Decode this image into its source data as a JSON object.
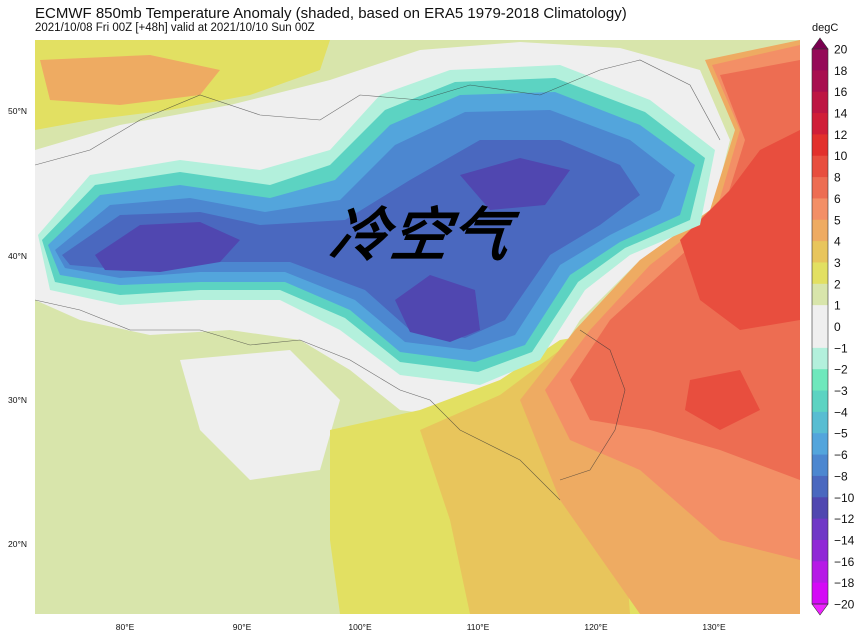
{
  "header": {
    "title": "ECMWF 850mb Temperature Anomaly (shaded, based on ERA5 1979-2018 Climatology)",
    "subtitle": "2021/10/08 Fri 00Z [+48h] valid at 2021/10/10 Sun 00Z"
  },
  "annotation": "冷空气",
  "axes": {
    "lat_labels": [
      "50°N",
      "40°N",
      "30°N",
      "20°N"
    ],
    "lon_labels": [
      "80°E",
      "90°E",
      "100°E",
      "110°E",
      "120°E",
      "130°E"
    ]
  },
  "colorbar": {
    "unit": "degC",
    "levels": [
      "20",
      "18",
      "16",
      "14",
      "12",
      "10",
      "8",
      "6",
      "5",
      "4",
      "3",
      "2",
      "1",
      "0",
      "−1",
      "−2",
      "−3",
      "−4",
      "−5",
      "−6",
      "−8",
      "−10",
      "−12",
      "−14",
      "−16",
      "−18",
      "−20"
    ],
    "colors": [
      "#950a58",
      "#a80f4f",
      "#bd1643",
      "#d01e38",
      "#e2302c",
      "#e84e3e",
      "#ed6d52",
      "#f38f66",
      "#eeab62",
      "#e8c55c",
      "#e2e062",
      "#d8e5ab",
      "#efefef",
      "#efefef",
      "#b3f0dc",
      "#6fe8bc",
      "#5cd3c2",
      "#58bdd2",
      "#53a5dc",
      "#4c87d0",
      "#4a68bf",
      "#5047b0",
      "#7038c6",
      "#9028d6",
      "#b61ae6",
      "#d40af6"
    ],
    "over_color": "#7a0050",
    "under_color": "#ee22ff"
  },
  "field_colors": {
    "background": "#d8e5ab",
    "neutral": "#efefef",
    "cyan": "#b3f0dc",
    "teal": "#6fe8bc",
    "blue": "#53a5dc",
    "mid_blue": "#4c87d0",
    "dark_blue": "#4a68bf",
    "deep_blue": "#5047b0",
    "yellow": "#e2e062",
    "gold": "#e8c55c",
    "orange": "#eeab62",
    "salmon": "#f38f66",
    "coral": "#ed6d52",
    "red": "#e84e3e"
  }
}
